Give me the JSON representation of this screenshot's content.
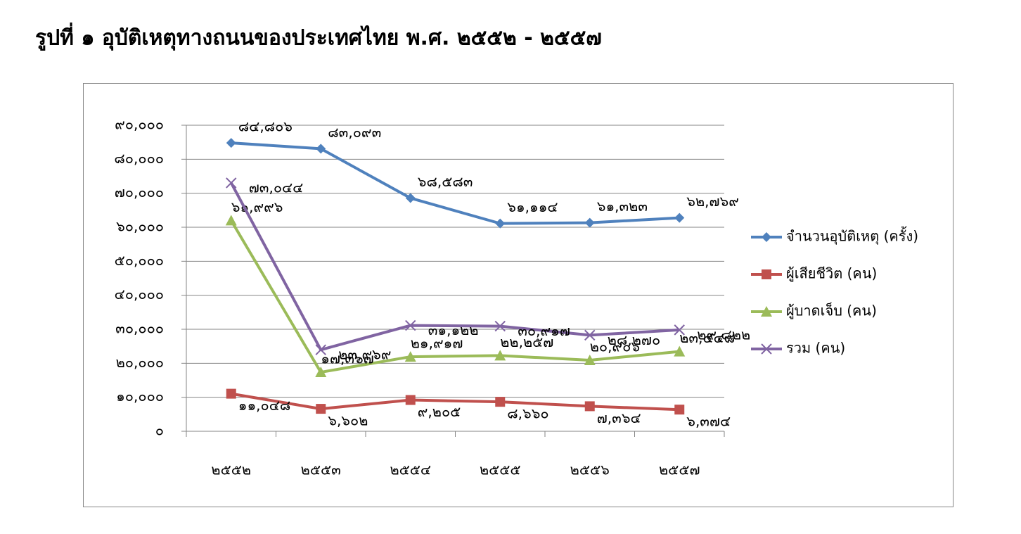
{
  "chart_data": {
    "type": "line",
    "title": "รูปที่ ๑ อุบัติเหตุทางถนนของประเทศไทย พ.ศ. ๒๕๕๒ - ๒๕๕๗",
    "categories": [
      "๒๕๕๒",
      "๒๕๕๓",
      "๒๕๕๔",
      "๒๕๕๕",
      "๒๕๕๖",
      "๒๕๕๗"
    ],
    "series": [
      {
        "name": "จำนวนอุบัติเหตุ (ครั้ง)",
        "color": "#4f81bd",
        "marker": "diamond",
        "values": [
          84806,
          83093,
          68583,
          61114,
          61323,
          62769
        ],
        "value_labels": [
          "๘๔,๘๐๖",
          "๘๓,๐๙๓",
          "๖๘,๕๘๓",
          "๖๑,๑๑๔",
          "๖๑,๓๒๓",
          "๖๒,๗๖๙"
        ]
      },
      {
        "name": "ผู้เสียชีวิต (คน)",
        "color": "#c0504d",
        "marker": "square",
        "values": [
          11048,
          6602,
          9205,
          8660,
          7364,
          6374
        ],
        "value_labels": [
          "๑๑,๐๔๘",
          "๖,๖๐๒",
          "๙,๒๐๕",
          "๘,๖๖๐",
          "๗,๓๖๔",
          "๖,๓๗๔"
        ]
      },
      {
        "name": "ผู้บาดเจ็บ (คน)",
        "color": "#9bbb59",
        "marker": "triangle",
        "values": [
          61996,
          17367,
          21917,
          22257,
          20906,
          23448
        ],
        "value_labels": [
          "๖๑,๙๙๖",
          "๑๗,๓๖๗",
          "๒๑,๙๑๗",
          "๒๒,๒๕๗",
          "๒๐,๙๐๖",
          "๒๓,๔๔๘"
        ]
      },
      {
        "name": "รวม (คน)",
        "color": "#8064a2",
        "marker": "x",
        "values": [
          73044,
          23969,
          31122,
          30917,
          28270,
          29822
        ],
        "value_labels": [
          "๗๓,๐๔๔",
          "๒๓,๙๖๙",
          "๓๑,๑๒๒",
          "๓๐,๙๑๗",
          "๒๘,๒๗๐",
          "๒๙,๘๒๒"
        ]
      }
    ],
    "ylim": [
      0,
      90000
    ],
    "yticks": [
      {
        "value": 0,
        "label": "๐"
      },
      {
        "value": 10000,
        "label": "๑๐,๐๐๐"
      },
      {
        "value": 20000,
        "label": "๒๐,๐๐๐"
      },
      {
        "value": 30000,
        "label": "๓๐,๐๐๐"
      },
      {
        "value": 40000,
        "label": "๔๐,๐๐๐"
      },
      {
        "value": 50000,
        "label": "๕๐,๐๐๐"
      },
      {
        "value": 60000,
        "label": "๖๐,๐๐๐"
      },
      {
        "value": 70000,
        "label": "๗๐,๐๐๐"
      },
      {
        "value": 80000,
        "label": "๘๐,๐๐๐"
      },
      {
        "value": 90000,
        "label": "๙๐,๐๐๐"
      }
    ],
    "grid": true,
    "legend": "right"
  }
}
